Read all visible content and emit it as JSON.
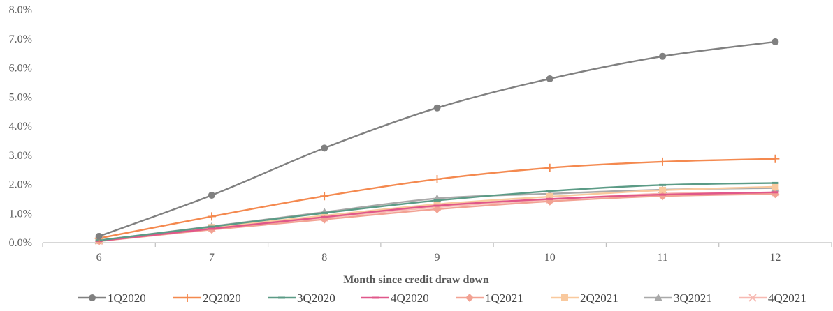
{
  "chart_data": {
    "type": "line",
    "title": "",
    "xlabel": "Month since credit draw down",
    "ylabel": "",
    "x": [
      6,
      7,
      8,
      9,
      10,
      11,
      12
    ],
    "ylim": [
      0,
      8
    ],
    "y_ticks": [
      "0.0%",
      "1.0%",
      "2.0%",
      "3.0%",
      "4.0%",
      "5.0%",
      "6.0%",
      "7.0%",
      "8.0%"
    ],
    "y_unit": "%",
    "grid": false,
    "legend_position": "bottom",
    "series": [
      {
        "name": "1Q2020",
        "color": "#808080",
        "marker": "circle",
        "values": [
          0.22,
          1.63,
          3.25,
          4.63,
          5.63,
          6.4,
          6.9
        ]
      },
      {
        "name": "2Q2020",
        "color": "#F4894F",
        "marker": "plus",
        "values": [
          0.15,
          0.9,
          1.6,
          2.18,
          2.57,
          2.78,
          2.88
        ]
      },
      {
        "name": "3Q2020",
        "color": "#5B9B86",
        "marker": "dash",
        "values": [
          0.08,
          0.55,
          1.02,
          1.45,
          1.77,
          1.98,
          2.05
        ]
      },
      {
        "name": "4Q2020",
        "color": "#E0578A",
        "marker": "dash",
        "values": [
          0.06,
          0.48,
          0.88,
          1.27,
          1.5,
          1.65,
          1.73
        ]
      },
      {
        "name": "1Q2021",
        "color": "#F2A293",
        "marker": "diamond",
        "values": [
          0.05,
          0.45,
          0.8,
          1.15,
          1.42,
          1.6,
          1.67
        ]
      },
      {
        "name": "2Q2021",
        "color": "#F9C99E",
        "marker": "square",
        "values": [
          0.07,
          0.52,
          0.93,
          1.32,
          1.58,
          1.8,
          1.92
        ]
      },
      {
        "name": "3Q2021",
        "color": "#A9A9A9",
        "marker": "triangle",
        "values": [
          0.08,
          0.56,
          1.05,
          1.52,
          1.68,
          1.82,
          1.88
        ]
      },
      {
        "name": "4Q2021",
        "color": "#F7B9B2",
        "marker": "cross",
        "values": [
          0.06,
          0.5,
          0.86,
          1.22,
          1.48,
          1.68,
          1.72
        ]
      }
    ]
  }
}
